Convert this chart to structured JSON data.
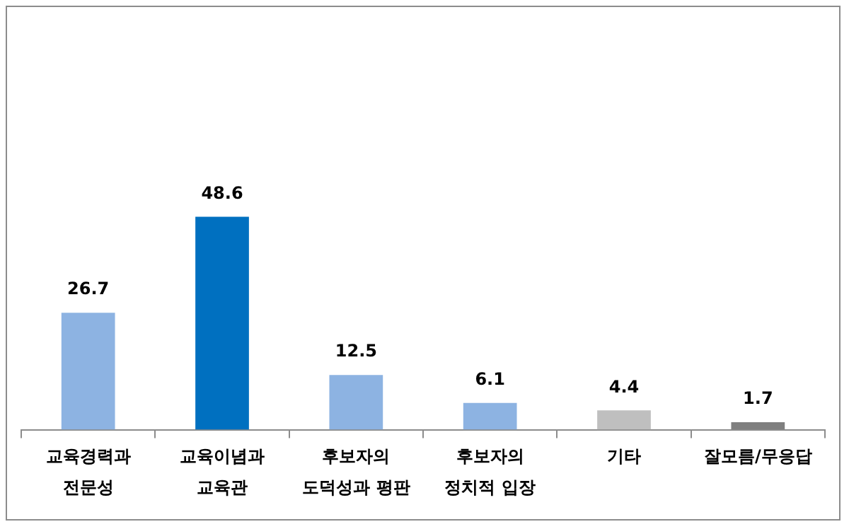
{
  "chart_data": {
    "type": "bar",
    "categories": [
      "교육경력과\n전문성",
      "교육이념과\n교육관",
      "후보자의\n도덕성과 평판",
      "후보자의\n정치적 입장",
      "기타",
      "잘모름/무응답"
    ],
    "values": [
      26.7,
      48.6,
      12.5,
      6.1,
      4.4,
      1.7
    ],
    "colors": [
      "#8db3e2",
      "#0070c0",
      "#8db3e2",
      "#8db3e2",
      "#bfbfbf",
      "#7f7f7f"
    ],
    "data_labels": true,
    "grid": false,
    "legend": false,
    "tick_labels": "x"
  }
}
